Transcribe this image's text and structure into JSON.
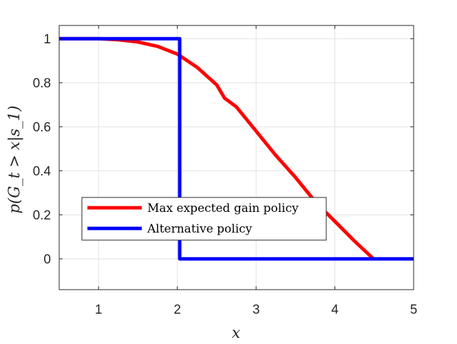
{
  "chart_data": {
    "type": "line",
    "xlabel": "x",
    "ylabel": "p(G_t > x|s_1)",
    "xlim": [
      0.5,
      5
    ],
    "ylim": [
      -0.14,
      1.06
    ],
    "xticks": [
      1,
      2,
      3,
      4,
      5
    ],
    "xtick_labels": [
      "1",
      "2",
      "3",
      "4",
      "5"
    ],
    "yticks": [
      0,
      0.2,
      0.4,
      0.6,
      0.8,
      1
    ],
    "ytick_labels": [
      "0",
      "0.2",
      "0.4",
      "0.6",
      "0.8",
      "1"
    ],
    "grid": true,
    "legend_position": "lower-left",
    "series": [
      {
        "name": "Max expected gain policy",
        "color": "#ff0000",
        "x": [
          0.5,
          1.0,
          1.25,
          1.5,
          1.75,
          2.0,
          2.25,
          2.5,
          2.6,
          2.75,
          3.0,
          3.25,
          3.5,
          3.75,
          4.0,
          4.25,
          4.49
        ],
        "y": [
          1.0,
          1.0,
          0.995,
          0.985,
          0.965,
          0.93,
          0.87,
          0.79,
          0.73,
          0.69,
          0.58,
          0.47,
          0.37,
          0.26,
          0.17,
          0.08,
          0.0
        ]
      },
      {
        "name": "Alternative policy",
        "color": "#0000ff",
        "x": [
          0.5,
          2.03,
          2.03,
          5.0
        ],
        "y": [
          1.0,
          1.0,
          0.0,
          0.0
        ]
      }
    ]
  }
}
